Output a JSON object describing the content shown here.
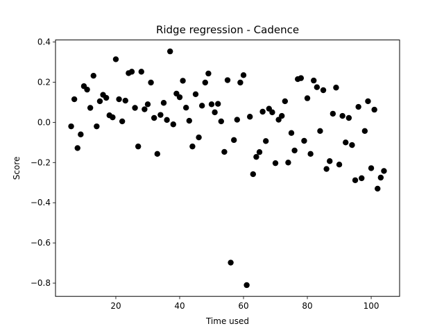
{
  "chart_data": {
    "type": "scatter",
    "title": "Ridge regression - Cadence",
    "xlabel": "Time used",
    "ylabel": "Score",
    "xlim": [
      1.1,
      108.9
    ],
    "ylim": [
      -0.866,
      0.41
    ],
    "x_ticks": [
      20,
      40,
      60,
      80,
      100
    ],
    "y_ticks": [
      -0.8,
      -0.6,
      -0.4,
      -0.2,
      0.0,
      0.2,
      0.4
    ],
    "x_tick_labels": [
      "20",
      "40",
      "60",
      "80",
      "100"
    ],
    "y_tick_labels": [
      "−0.8",
      "−0.6",
      "−0.4",
      "−0.2",
      "0.0",
      "0.2",
      "0.4"
    ],
    "grid": false,
    "marker_color": "#000000",
    "points": [
      [
        6,
        -0.02
      ],
      [
        7,
        0.115
      ],
      [
        8,
        -0.128
      ],
      [
        9,
        -0.06
      ],
      [
        10,
        0.18
      ],
      [
        11,
        0.163
      ],
      [
        12,
        0.072
      ],
      [
        13,
        0.232
      ],
      [
        14,
        -0.02
      ],
      [
        15,
        0.105
      ],
      [
        16,
        0.137
      ],
      [
        17,
        0.122
      ],
      [
        18,
        0.035
      ],
      [
        19,
        0.025
      ],
      [
        20,
        0.314
      ],
      [
        21,
        0.115
      ],
      [
        22,
        0.005
      ],
      [
        23,
        0.108
      ],
      [
        24,
        0.245
      ],
      [
        25,
        0.252
      ],
      [
        26,
        0.072
      ],
      [
        27,
        -0.12
      ],
      [
        28,
        0.252
      ],
      [
        29,
        0.065
      ],
      [
        30,
        0.09
      ],
      [
        31,
        0.198
      ],
      [
        32,
        0.022
      ],
      [
        33,
        -0.157
      ],
      [
        34,
        0.037
      ],
      [
        35,
        0.097
      ],
      [
        36,
        0.012
      ],
      [
        37,
        0.353
      ],
      [
        38,
        -0.01
      ],
      [
        39,
        0.143
      ],
      [
        40,
        0.125
      ],
      [
        41,
        0.207
      ],
      [
        42,
        0.073
      ],
      [
        43,
        0.008
      ],
      [
        44,
        -0.12
      ],
      [
        45,
        0.14
      ],
      [
        46,
        -0.075
      ],
      [
        47,
        0.083
      ],
      [
        48,
        0.198
      ],
      [
        49,
        0.243
      ],
      [
        50,
        0.09
      ],
      [
        51,
        0.05
      ],
      [
        52,
        0.092
      ],
      [
        53,
        0.005
      ],
      [
        54,
        -0.147
      ],
      [
        55,
        0.21
      ],
      [
        56,
        -0.698
      ],
      [
        57,
        -0.088
      ],
      [
        58,
        0.013
      ],
      [
        59,
        0.198
      ],
      [
        60,
        0.235
      ],
      [
        61,
        -0.81
      ],
      [
        62,
        0.028
      ],
      [
        63,
        -0.258
      ],
      [
        64,
        -0.172
      ],
      [
        65,
        -0.148
      ],
      [
        66,
        0.053
      ],
      [
        67,
        -0.093
      ],
      [
        68,
        0.068
      ],
      [
        69,
        0.05
      ],
      [
        70,
        -0.203
      ],
      [
        71,
        0.013
      ],
      [
        72,
        0.032
      ],
      [
        73,
        0.105
      ],
      [
        74,
        -0.2
      ],
      [
        75,
        -0.053
      ],
      [
        76,
        -0.14
      ],
      [
        77,
        0.215
      ],
      [
        78,
        0.22
      ],
      [
        79,
        -0.092
      ],
      [
        80,
        0.12
      ],
      [
        81,
        -0.157
      ],
      [
        82,
        0.208
      ],
      [
        83,
        0.175
      ],
      [
        84,
        -0.043
      ],
      [
        85,
        0.16
      ],
      [
        86,
        -0.232
      ],
      [
        87,
        -0.193
      ],
      [
        88,
        0.043
      ],
      [
        89,
        0.173
      ],
      [
        90,
        -0.21
      ],
      [
        91,
        0.032
      ],
      [
        92,
        -0.1
      ],
      [
        93,
        0.022
      ],
      [
        94,
        -0.113
      ],
      [
        95,
        -0.288
      ],
      [
        96,
        0.077
      ],
      [
        97,
        -0.278
      ],
      [
        98,
        -0.043
      ],
      [
        99,
        0.105
      ],
      [
        100,
        -0.228
      ],
      [
        101,
        0.063
      ],
      [
        102,
        -0.33
      ],
      [
        103,
        -0.275
      ],
      [
        104,
        -0.242
      ]
    ]
  }
}
